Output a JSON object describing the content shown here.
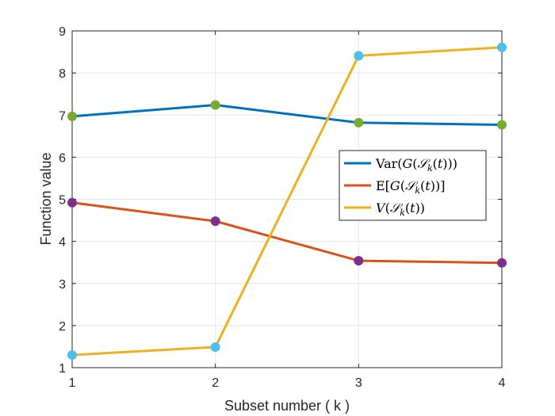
{
  "chart_data": {
    "type": "line",
    "x": [
      1,
      2,
      3,
      4
    ],
    "xlabel": "Subset number ( k )",
    "ylabel": "Function value",
    "xlim": [
      1,
      4
    ],
    "ylim": [
      1,
      9
    ],
    "xticks": [
      "1",
      "2",
      "3",
      "4"
    ],
    "yticks": [
      "1",
      "2",
      "3",
      "4",
      "5",
      "6",
      "7",
      "8",
      "9"
    ],
    "grid": true,
    "legend_position": "right-middle",
    "series": [
      {
        "name": "Var(G(S_k(t)))",
        "values": [
          6.97,
          7.24,
          6.82,
          6.77
        ],
        "color": "#0072bd",
        "marker_color": "#77ac30"
      },
      {
        "name": "E[G(S_k(t))]",
        "values": [
          4.92,
          4.48,
          3.54,
          3.49
        ],
        "color": "#d95319",
        "marker_color": "#7e2f8e"
      },
      {
        "name": "V(S_k(t))",
        "values": [
          1.3,
          1.49,
          8.41,
          8.61
        ],
        "color": "#edb120",
        "marker_color": "#4dbeee"
      }
    ]
  }
}
